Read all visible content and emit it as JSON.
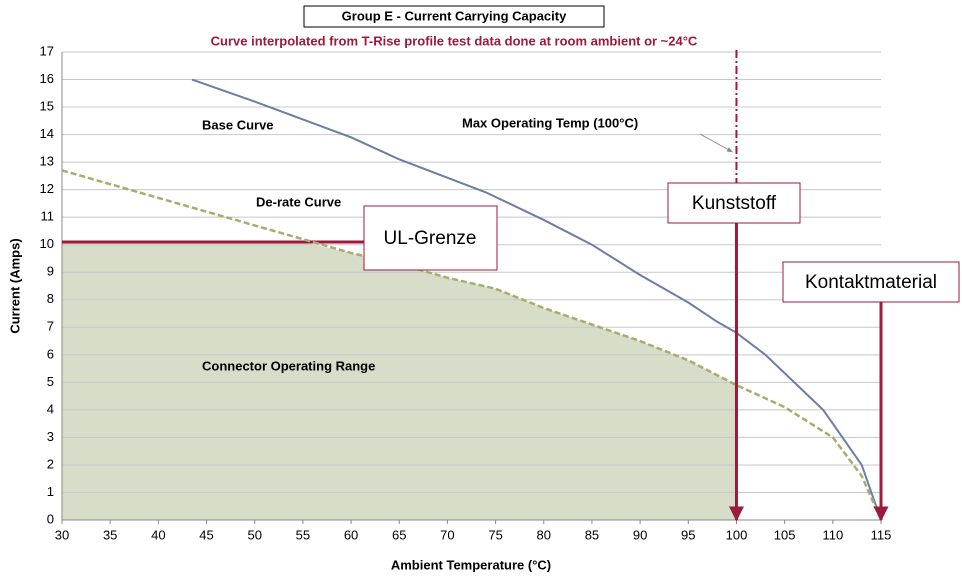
{
  "chart_data": {
    "type": "line",
    "title": "Group E - Current Carrying Capacity",
    "subtitle": "Curve interpolated from T-Rise profile test data done at room ambient or ~24°C",
    "xlabel": "Ambient Temperature (°C)",
    "ylabel": "Current (Amps)",
    "xlim": [
      30,
      115
    ],
    "ylim": [
      0,
      17
    ],
    "xticks": [
      30,
      35,
      40,
      45,
      50,
      55,
      60,
      65,
      70,
      75,
      80,
      85,
      90,
      95,
      100,
      105,
      110,
      115
    ],
    "yticks": [
      0,
      1,
      2,
      3,
      4,
      5,
      6,
      7,
      8,
      9,
      10,
      11,
      12,
      13,
      14,
      15,
      16,
      17
    ],
    "grid": true,
    "series": [
      {
        "name": "Base Curve",
        "color": "#6a7ea6",
        "x": [
          43.5,
          50,
          60,
          65,
          74,
          80,
          85,
          90,
          95,
          98,
          100,
          103,
          106,
          109,
          113,
          115
        ],
        "values": [
          16,
          15.2,
          13.9,
          13.1,
          11.9,
          10.9,
          10,
          8.9,
          7.9,
          7.2,
          6.8,
          6,
          5,
          4,
          2,
          0
        ]
      },
      {
        "name": "De-rate Curve",
        "color": "#a9ac6c",
        "x": [
          30,
          35,
          40,
          45,
          50,
          55,
          60,
          65,
          70,
          75,
          80,
          85,
          90,
          95,
          100,
          105,
          110,
          113,
          115
        ],
        "values": [
          12.7,
          12.2,
          11.7,
          11.2,
          10.7,
          10.2,
          9.7,
          9.3,
          8.8,
          8.4,
          7.7,
          7.1,
          6.5,
          5.8,
          4.9,
          4.1,
          3,
          1.6,
          0
        ]
      }
    ],
    "area_label": "Connector Operating Range",
    "area_color": "#d8ddca",
    "max_temp": {
      "text": "Max Operating Temp (100°C)",
      "x": 100
    },
    "ul_limit": {
      "label": "UL-Grenze",
      "value": 10.1
    },
    "limits": [
      {
        "label": "Kunststoff",
        "x": 100
      },
      {
        "label": "Kontaktmaterial",
        "x": 115
      }
    ],
    "accent_color": "#9b1b3c"
  }
}
